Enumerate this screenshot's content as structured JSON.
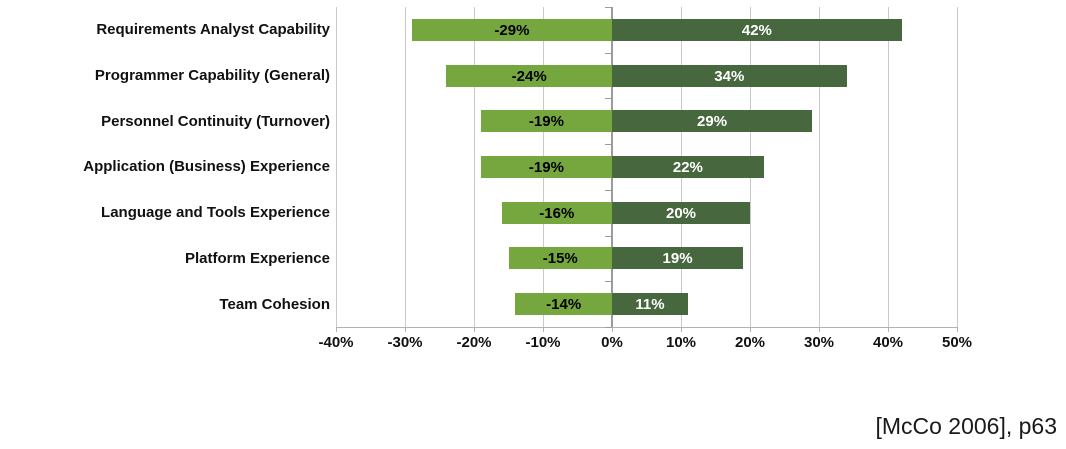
{
  "chart_data": {
    "type": "bar",
    "orientation": "horizontal-diverging",
    "title": "",
    "xlabel": "",
    "ylabel": "",
    "xlim": [
      -40,
      50
    ],
    "x_tick_step": 10,
    "x_ticks": [
      -40,
      -30,
      -20,
      -10,
      0,
      10,
      20,
      30,
      40,
      50
    ],
    "x_tick_labels": [
      "-40%",
      "-30%",
      "-20%",
      "-10%",
      "0%",
      "10%",
      "20%",
      "30%",
      "40%",
      "50%"
    ],
    "grid": true,
    "legend": "none",
    "categories": [
      "Requirements Analyst Capability",
      "Programmer Capability (General)",
      "Personnel Continuity (Turnover)",
      "Application (Business) Experience",
      "Language and Tools Experience",
      "Platform Experience",
      "Team Cohesion"
    ],
    "series": [
      {
        "name": "negative-impact",
        "color": "#76a73f",
        "label_color": "#000000",
        "values": [
          -29,
          -24,
          -19,
          -19,
          -16,
          -15,
          -14
        ],
        "labels": [
          "-29%",
          "-24%",
          "-19%",
          "-19%",
          "-16%",
          "-15%",
          "-14%"
        ]
      },
      {
        "name": "positive-impact",
        "color": "#47683f",
        "label_color": "#ffffff",
        "values": [
          42,
          34,
          29,
          22,
          20,
          19,
          11
        ],
        "labels": [
          "42%",
          "34%",
          "29%",
          "22%",
          "20%",
          "19%",
          "11%"
        ]
      }
    ]
  },
  "colors": {
    "gridline": "#c9c9c9",
    "zero_axis": "#9b9b9b",
    "bottom_axis": "#b3b3b3",
    "background": "#ffffff"
  },
  "citation": "[McCo 2006], p63"
}
